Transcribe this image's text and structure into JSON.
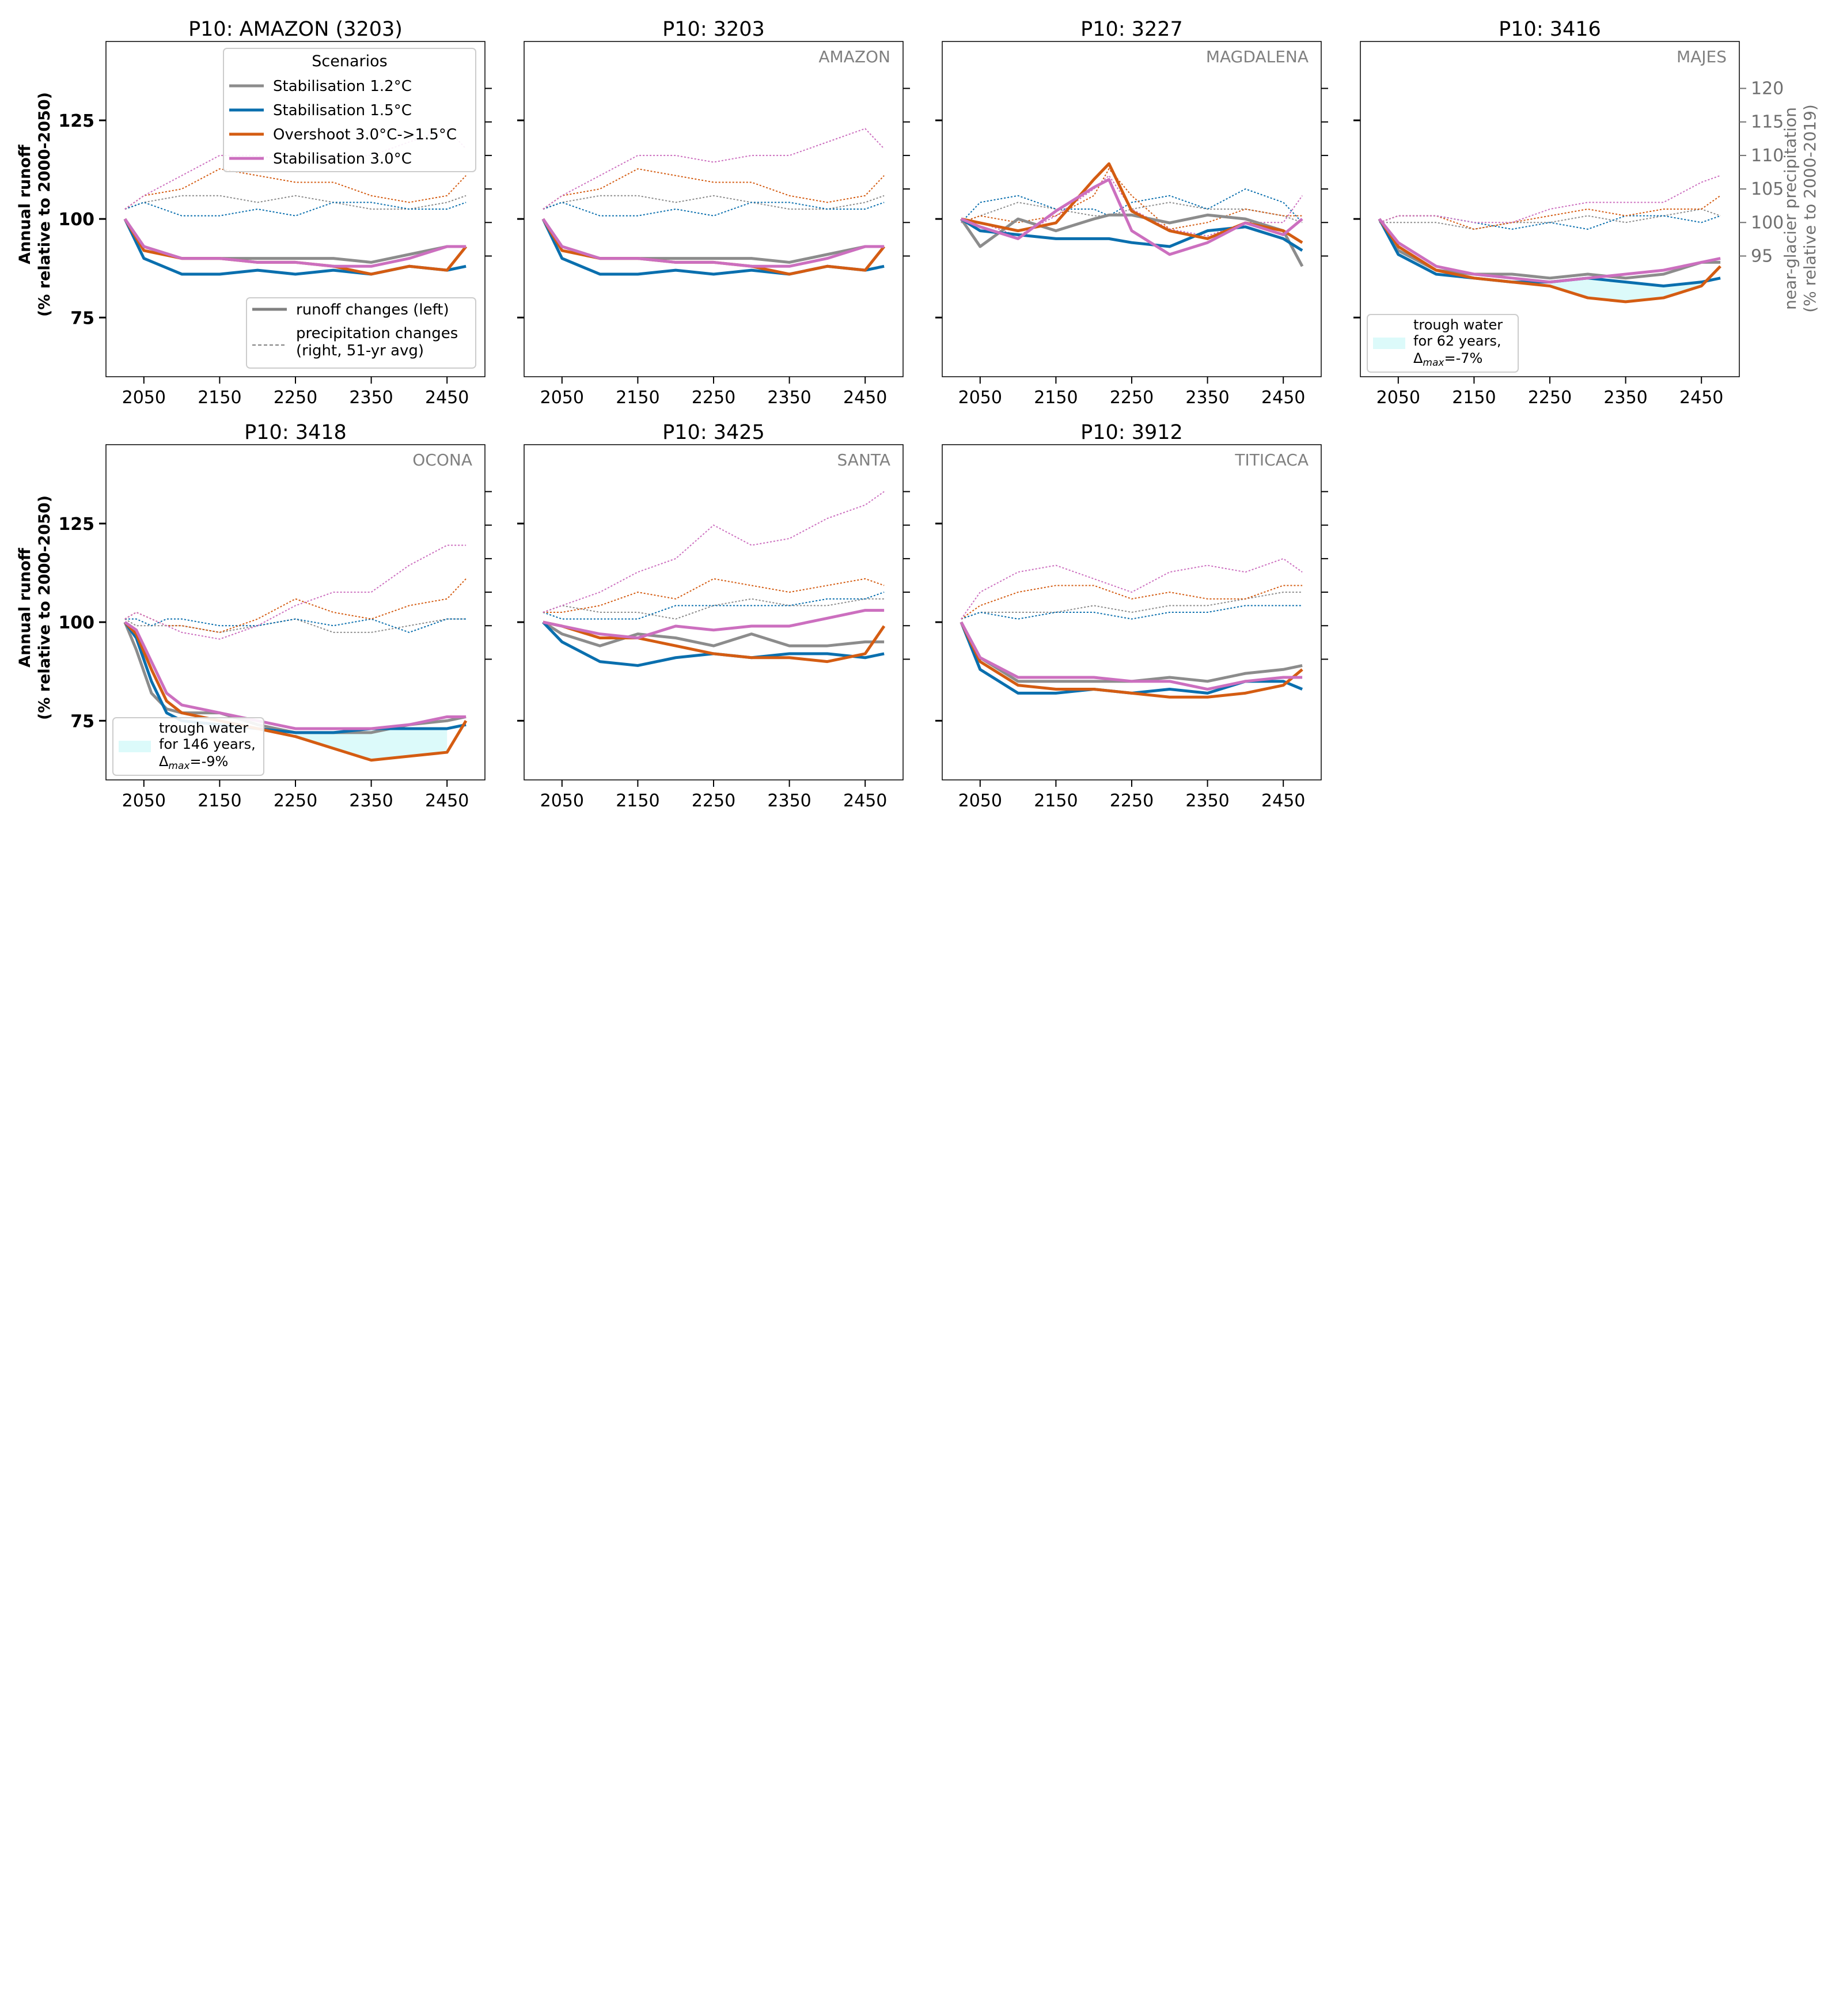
{
  "figure": {
    "ylabel_left_line1": "Annual runoff",
    "ylabel_left_line2": "(% relative to 2000-2050)",
    "ylabel_right_line1": "near-glacier precipitation",
    "ylabel_right_line2": "(% relative to 2000-2019)"
  },
  "legend": {
    "title": "Scenarios",
    "runoff_label": "runoff changes (left)",
    "precip_label_line1": "precipitation changes",
    "precip_label_line2": "(right, 51-yr avg)"
  },
  "colors": {
    "stab12": "#8c8c8c",
    "stab15": "#0a6fae",
    "overshoot": "#d45c12",
    "stab30": "#cc6fbf",
    "trough_fill": "#dcfafa",
    "basin_label": "#808080"
  },
  "chart_data": {
    "type": "line",
    "x_ticks": [
      2050,
      2150,
      2250,
      2350,
      2450
    ],
    "xlim": [
      2000,
      2500
    ],
    "ylim_left": [
      60,
      145
    ],
    "yticks_left": [
      75,
      100,
      125
    ],
    "ylim_right": [
      77,
      127
    ],
    "yticks_right": [
      95,
      100,
      105,
      110,
      115,
      120
    ],
    "scenarios": [
      {
        "key": "stab12",
        "name": "Stabilisation 1.2°C"
      },
      {
        "key": "stab15",
        "name": "Stabilisation 1.5°C"
      },
      {
        "key": "overshoot",
        "name": "Overshoot 3.0°C->1.5°C"
      },
      {
        "key": "stab30",
        "name": "Stabilisation 3.0°C"
      }
    ],
    "panels": [
      {
        "title": "P10: AMAZON (3203)",
        "basin": "",
        "x": [
          2025,
          2050,
          2100,
          2150,
          2200,
          2250,
          2300,
          2350,
          2400,
          2450,
          2475
        ],
        "runoff": {
          "stab12": [
            100,
            93,
            90,
            90,
            90,
            90,
            90,
            89,
            91,
            93,
            93
          ],
          "stab15": [
            100,
            90,
            86,
            86,
            87,
            86,
            87,
            86,
            88,
            87,
            88
          ],
          "overshoot": [
            100,
            92,
            90,
            90,
            89,
            89,
            88,
            86,
            88,
            87,
            93
          ],
          "stab30": [
            100,
            93,
            90,
            90,
            89,
            89,
            88,
            88,
            90,
            93,
            93
          ]
        },
        "precip": {
          "stab12": [
            102,
            103,
            104,
            104,
            103,
            104,
            103,
            102,
            102,
            103,
            104
          ],
          "stab15": [
            102,
            103,
            101,
            101,
            102,
            101,
            103,
            103,
            102,
            102,
            103
          ],
          "overshoot": [
            102,
            104,
            105,
            108,
            107,
            106,
            106,
            104,
            103,
            104,
            107
          ],
          "stab30": [
            102,
            104,
            107,
            110,
            110,
            109,
            110,
            110,
            112,
            114,
            111
          ]
        },
        "trough": null,
        "left_axis": true,
        "right_axis": false,
        "legend": true
      },
      {
        "title": "P10: 3203",
        "basin": "AMAZON",
        "x": [
          2025,
          2050,
          2100,
          2150,
          2200,
          2250,
          2300,
          2350,
          2400,
          2450,
          2475
        ],
        "runoff": {
          "stab12": [
            100,
            93,
            90,
            90,
            90,
            90,
            90,
            89,
            91,
            93,
            93
          ],
          "stab15": [
            100,
            90,
            86,
            86,
            87,
            86,
            87,
            86,
            88,
            87,
            88
          ],
          "overshoot": [
            100,
            92,
            90,
            90,
            89,
            89,
            88,
            86,
            88,
            87,
            93
          ],
          "stab30": [
            100,
            93,
            90,
            90,
            89,
            89,
            88,
            88,
            90,
            93,
            93
          ]
        },
        "precip": {
          "stab12": [
            102,
            103,
            104,
            104,
            103,
            104,
            103,
            102,
            102,
            103,
            104
          ],
          "stab15": [
            102,
            103,
            101,
            101,
            102,
            101,
            103,
            103,
            102,
            102,
            103
          ],
          "overshoot": [
            102,
            104,
            105,
            108,
            107,
            106,
            106,
            104,
            103,
            104,
            107
          ],
          "stab30": [
            102,
            104,
            107,
            110,
            110,
            109,
            110,
            110,
            112,
            114,
            111
          ]
        },
        "trough": null,
        "left_axis": false,
        "right_axis": false,
        "legend": false
      },
      {
        "title": "P10: 3227",
        "basin": "MAGDALENA",
        "x": [
          2025,
          2050,
          2100,
          2150,
          2200,
          2220,
          2250,
          2300,
          2350,
          2400,
          2450,
          2475
        ],
        "runoff": {
          "stab12": [
            100,
            93,
            100,
            97,
            100,
            101,
            101,
            99,
            101,
            100,
            97,
            88
          ],
          "stab15": [
            100,
            97,
            96,
            95,
            95,
            95,
            94,
            93,
            97,
            98,
            95,
            92
          ],
          "overshoot": [
            100,
            99,
            97,
            99,
            110,
            114,
            102,
            97,
            95,
            99,
            97,
            94
          ],
          "stab30": [
            100,
            98,
            95,
            102,
            108,
            110,
            97,
            91,
            94,
            99,
            96,
            100
          ]
        },
        "precip": {
          "stab12": [
            100,
            101,
            103,
            102,
            101,
            101,
            102,
            103,
            102,
            102,
            101,
            100
          ],
          "stab15": [
            100,
            103,
            104,
            102,
            102,
            101,
            103,
            104,
            102,
            105,
            103,
            100
          ],
          "overshoot": [
            100,
            101,
            100,
            101,
            104,
            108,
            104,
            99,
            100,
            102,
            101,
            101
          ],
          "stab30": [
            100,
            100,
            98,
            101,
            105,
            107,
            102,
            99,
            98,
            100,
            100,
            104
          ]
        },
        "trough": null,
        "left_axis": false,
        "right_axis": false,
        "legend": false
      },
      {
        "title": "P10: 3416",
        "basin": "MAJES",
        "x": [
          2025,
          2050,
          2100,
          2150,
          2200,
          2250,
          2300,
          2350,
          2400,
          2450,
          2475
        ],
        "runoff": {
          "stab12": [
            100,
            92,
            87,
            86,
            86,
            85,
            86,
            85,
            86,
            89,
            89
          ],
          "stab15": [
            100,
            91,
            86,
            85,
            84,
            84,
            85,
            84,
            83,
            84,
            85
          ],
          "overshoot": [
            100,
            93,
            87,
            85,
            84,
            83,
            80,
            79,
            80,
            83,
            88
          ],
          "stab30": [
            100,
            94,
            88,
            86,
            85,
            84,
            85,
            86,
            87,
            89,
            90
          ]
        },
        "precip": {
          "stab12": [
            100,
            100,
            100,
            99,
            100,
            100,
            101,
            100,
            101,
            102,
            101
          ],
          "stab15": [
            100,
            101,
            101,
            100,
            99,
            100,
            99,
            101,
            101,
            100,
            101
          ],
          "overshoot": [
            100,
            101,
            101,
            99,
            100,
            101,
            102,
            101,
            102,
            102,
            104
          ],
          "stab30": [
            100,
            101,
            101,
            100,
            100,
            102,
            103,
            103,
            103,
            106,
            107
          ]
        },
        "trough": {
          "x": [
            2250,
            2300,
            2350,
            2400,
            2450
          ],
          "upper": [
            84,
            85,
            84,
            83,
            84
          ],
          "lower": [
            83,
            80,
            79,
            80,
            83
          ],
          "line1": "trough water",
          "line2": "for 62 years,",
          "line3_prefix": "Δ",
          "line3_sub": "max",
          "line3_suffix": "=-7%"
        },
        "left_axis": false,
        "right_axis": true,
        "legend": false
      },
      {
        "title": "P10: 3418",
        "basin": "OCONA",
        "x": [
          2025,
          2040,
          2060,
          2080,
          2100,
          2150,
          2200,
          2250,
          2300,
          2350,
          2400,
          2450,
          2475
        ],
        "runoff": {
          "stab12": [
            100,
            93,
            82,
            78,
            77,
            77,
            74,
            72,
            72,
            72,
            74,
            75,
            76
          ],
          "stab15": [
            100,
            96,
            85,
            77,
            75,
            74,
            73,
            72,
            72,
            73,
            73,
            73,
            74
          ],
          "overshoot": [
            100,
            97,
            88,
            80,
            77,
            75,
            73,
            71,
            68,
            65,
            66,
            67,
            75
          ],
          "stab30": [
            100,
            98,
            90,
            82,
            79,
            77,
            75,
            73,
            73,
            73,
            74,
            76,
            76
          ]
        },
        "precip": {
          "stab12": [
            101,
            100,
            100,
            100,
            100,
            99,
            100,
            101,
            99,
            99,
            100,
            101,
            101
          ],
          "stab15": [
            101,
            101,
            100,
            101,
            101,
            100,
            100,
            101,
            100,
            101,
            99,
            101,
            101
          ],
          "overshoot": [
            101,
            102,
            101,
            100,
            100,
            99,
            101,
            104,
            102,
            101,
            103,
            104,
            107
          ],
          "stab30": [
            101,
            102,
            101,
            100,
            99,
            98,
            100,
            103,
            105,
            105,
            109,
            112,
            112
          ]
        },
        "trough": {
          "x": [
            2250,
            2300,
            2350,
            2400,
            2450
          ],
          "upper": [
            72,
            72,
            73,
            73,
            73
          ],
          "lower": [
            71,
            68,
            65,
            66,
            67
          ],
          "line1": "trough water",
          "line2": "for 146 years,",
          "line3_prefix": "Δ",
          "line3_sub": "max",
          "line3_suffix": "=-9%"
        },
        "left_axis": true,
        "right_axis": false,
        "legend": false
      },
      {
        "title": "P10: 3425",
        "basin": "SANTA",
        "x": [
          2025,
          2050,
          2100,
          2150,
          2200,
          2250,
          2300,
          2350,
          2400,
          2450,
          2475
        ],
        "runoff": {
          "stab12": [
            100,
            97,
            94,
            97,
            96,
            94,
            97,
            94,
            94,
            95,
            95
          ],
          "stab15": [
            100,
            95,
            90,
            89,
            91,
            92,
            91,
            92,
            92,
            91,
            92
          ],
          "overshoot": [
            100,
            99,
            96,
            96,
            94,
            92,
            91,
            91,
            90,
            92,
            99
          ],
          "stab30": [
            100,
            99,
            97,
            96,
            99,
            98,
            99,
            99,
            101,
            103,
            103
          ]
        },
        "precip": {
          "stab12": [
            102,
            103,
            102,
            102,
            101,
            103,
            104,
            103,
            103,
            104,
            104
          ],
          "stab15": [
            102,
            101,
            101,
            101,
            103,
            103,
            103,
            103,
            104,
            104,
            105
          ],
          "overshoot": [
            102,
            102,
            103,
            105,
            104,
            107,
            106,
            105,
            106,
            107,
            106
          ],
          "stab30": [
            102,
            103,
            105,
            108,
            110,
            115,
            112,
            113,
            116,
            118,
            120
          ]
        },
        "trough": null,
        "left_axis": false,
        "right_axis": false,
        "legend": false
      },
      {
        "title": "P10: 3912",
        "basin": "TITICACA",
        "x": [
          2025,
          2050,
          2100,
          2150,
          2200,
          2250,
          2300,
          2350,
          2400,
          2450,
          2475
        ],
        "runoff": {
          "stab12": [
            100,
            91,
            85,
            85,
            85,
            85,
            86,
            85,
            87,
            88,
            89
          ],
          "stab15": [
            100,
            88,
            82,
            82,
            83,
            82,
            83,
            82,
            85,
            85,
            83
          ],
          "overshoot": [
            100,
            90,
            84,
            83,
            83,
            82,
            81,
            81,
            82,
            84,
            88
          ],
          "stab30": [
            100,
            91,
            86,
            86,
            86,
            85,
            85,
            83,
            85,
            86,
            86
          ]
        },
        "precip": {
          "stab12": [
            101,
            102,
            102,
            102,
            103,
            102,
            103,
            103,
            104,
            105,
            105
          ],
          "stab15": [
            101,
            102,
            101,
            102,
            102,
            101,
            102,
            102,
            103,
            103,
            103
          ],
          "overshoot": [
            101,
            103,
            105,
            106,
            106,
            104,
            105,
            104,
            104,
            106,
            106
          ],
          "stab30": [
            101,
            105,
            108,
            109,
            107,
            105,
            108,
            109,
            108,
            110,
            108
          ]
        },
        "trough": null,
        "left_axis": false,
        "right_axis": false,
        "legend": false
      }
    ]
  }
}
